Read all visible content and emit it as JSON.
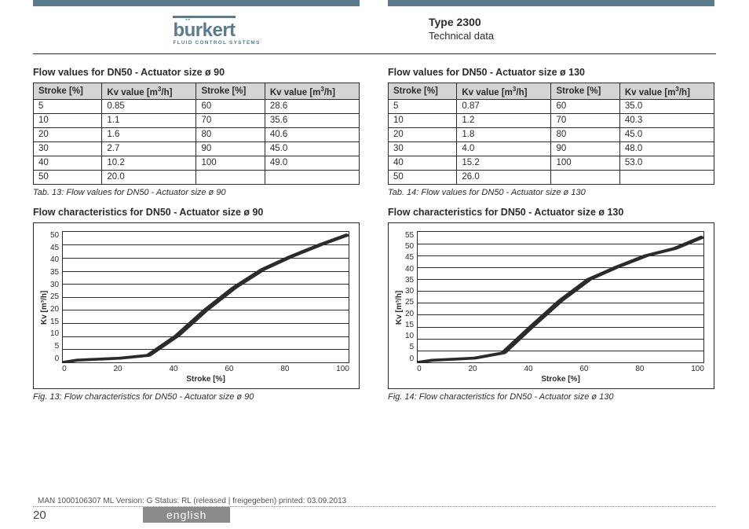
{
  "header": {
    "brand": "burkert",
    "tagline": "FLUID CONTROL SYSTEMS",
    "type_title": "Type 2300",
    "type_sub": "Technical data"
  },
  "left": {
    "table_title": "Flow values for DN50 - Actuator size ø 90",
    "headers": [
      "Stroke [%]",
      "Kv value [m³/h]",
      "Stroke [%]",
      "Kv value [m³/h]"
    ],
    "rows": [
      [
        "5",
        "0.85",
        "60",
        "28.6"
      ],
      [
        "10",
        "1.1",
        "70",
        "35.6"
      ],
      [
        "20",
        "1.6",
        "80",
        "40.6"
      ],
      [
        "30",
        "2.7",
        "90",
        "45.0"
      ],
      [
        "40",
        "10.2",
        "100",
        "49.0"
      ],
      [
        "50",
        "20.0",
        "",
        ""
      ]
    ],
    "table_caption": "Tab. 13:  Flow values for DN50 - Actuator size ø 90",
    "chart_title": "Flow characteristics for DN50 - Actuator size ø 90",
    "chart": {
      "ylabel": "Kv [m³/h]",
      "xlabel": "Stroke [%]",
      "ymin": 0,
      "ymax": 50,
      "ystep": 5,
      "xmin": 0,
      "xmax": 100,
      "xstep": 20,
      "yticks": [
        "50",
        "45",
        "40",
        "35",
        "30",
        "25",
        "20",
        "15",
        "10",
        "5",
        "0"
      ],
      "xticks": [
        "0",
        "20",
        "40",
        "60",
        "80",
        "100"
      ],
      "points": [
        [
          0,
          0
        ],
        [
          5,
          0.85
        ],
        [
          10,
          1.1
        ],
        [
          20,
          1.6
        ],
        [
          30,
          2.7
        ],
        [
          40,
          10.2
        ],
        [
          50,
          20.0
        ],
        [
          60,
          28.6
        ],
        [
          70,
          35.6
        ],
        [
          80,
          40.6
        ],
        [
          90,
          45.0
        ],
        [
          100,
          49.0
        ]
      ]
    },
    "chart_caption": "Fig. 13:   Flow characteristics for DN50 - Actuator size ø 90"
  },
  "right": {
    "table_title": "Flow values for DN50 - Actuator size ø 130",
    "headers": [
      "Stroke [%]",
      "Kv value [m³/h]",
      "Stroke [%]",
      "Kv value [m³/h]"
    ],
    "rows": [
      [
        "5",
        "0.87",
        "60",
        "35.0"
      ],
      [
        "10",
        "1.2",
        "70",
        "40.3"
      ],
      [
        "20",
        "1.8",
        "80",
        "45.0"
      ],
      [
        "30",
        "4.0",
        "90",
        "48.0"
      ],
      [
        "40",
        "15.2",
        "100",
        "53.0"
      ],
      [
        "50",
        "26.0",
        "",
        ""
      ]
    ],
    "table_caption": "Tab. 14:  Flow values for DN50 - Actuator size ø 130",
    "chart_title": "Flow characteristics for DN50 - Actuator size ø 130",
    "chart": {
      "ylabel": "Kv [m³/h]",
      "xlabel": "Stroke [%]",
      "ymin": 0,
      "ymax": 55,
      "ystep": 5,
      "yticks": [
        "55",
        "50",
        "45",
        "40",
        "35",
        "30",
        "25",
        "20",
        "15",
        "10",
        "5",
        "0"
      ],
      "xticks": [
        "0",
        "20",
        "40",
        "60",
        "80",
        "100"
      ],
      "points": [
        [
          0,
          0
        ],
        [
          5,
          0.87
        ],
        [
          10,
          1.2
        ],
        [
          20,
          1.8
        ],
        [
          30,
          4.0
        ],
        [
          40,
          15.2
        ],
        [
          50,
          26.0
        ],
        [
          60,
          35.0
        ],
        [
          70,
          40.3
        ],
        [
          80,
          45.0
        ],
        [
          90,
          48.0
        ],
        [
          100,
          53.0
        ]
      ]
    },
    "chart_caption": "Fig. 14:   Flow characteristics for DN50 - Actuator size ø 130"
  },
  "footer": {
    "meta": "MAN  1000106307  ML  Version: G Status: RL (released | freigegeben)  printed: 03.09.2013",
    "page": "20",
    "lang": "english"
  }
}
